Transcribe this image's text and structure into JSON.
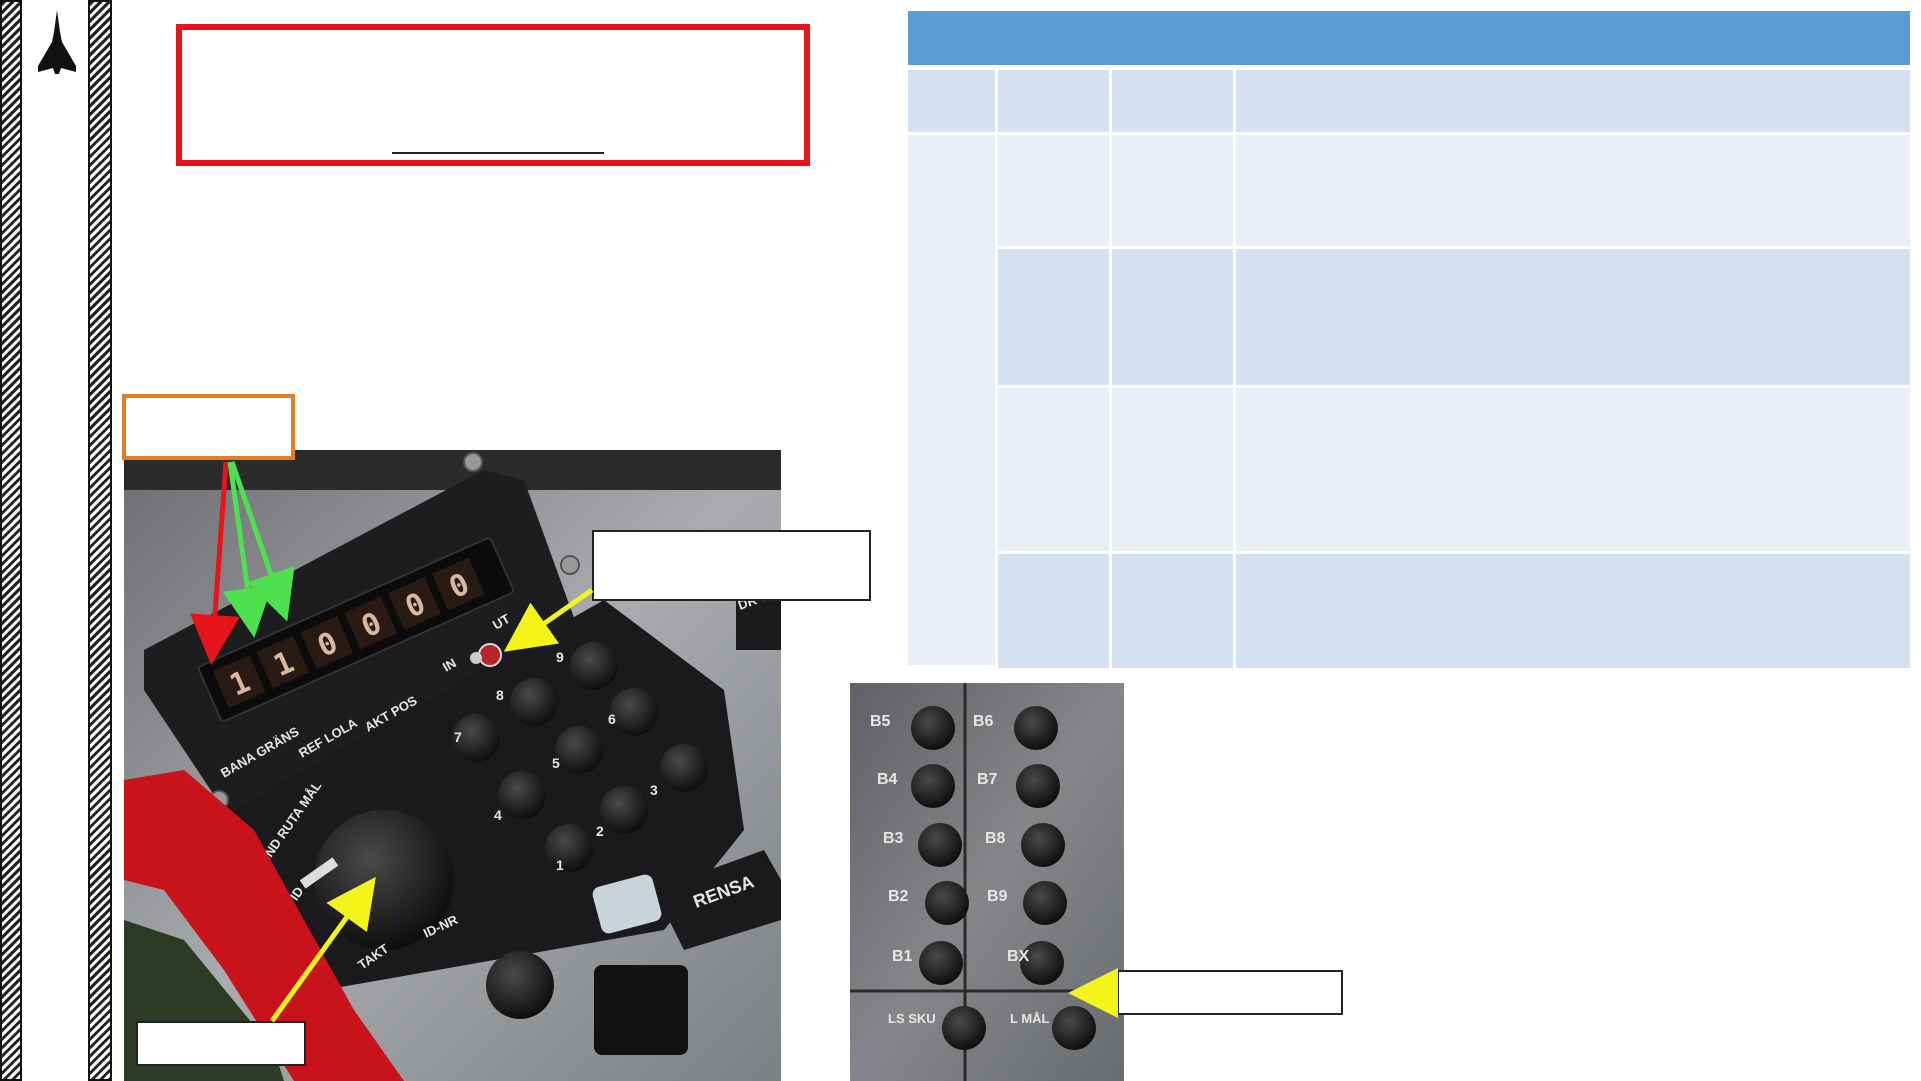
{
  "nav": {
    "jet_icon": "fighter-jet-icon"
  },
  "keypad": {
    "digit_readout": [
      "1",
      "1",
      "0",
      "0",
      "0",
      "0"
    ],
    "switch_labels": {
      "in": "IN",
      "ut": "UT"
    },
    "key_labels": [
      "1",
      "2",
      "3",
      "4",
      "5",
      "6",
      "7",
      "8",
      "9"
    ],
    "selector_labels": [
      "BANA GRÄNS",
      "REF LOLA",
      "AKT POS",
      "VIND RUTA MÅL",
      "TID",
      "TAKT",
      "ID-NR"
    ],
    "rensa_label": "RENSA",
    "edge_label": "DR TIL"
  },
  "button_panel": {
    "left_column": [
      "B5",
      "B4",
      "B3",
      "B2",
      "B1",
      "LS SKU"
    ],
    "right_column": [
      "B6",
      "B7",
      "B8",
      "B9",
      "BX",
      "L MÅL"
    ]
  },
  "colors": {
    "title_box_border": "#e8141c",
    "callout_orange": "#e27e2b",
    "table_header": "#5b9bd5",
    "table_cell_dark": "#d5e1f0",
    "table_cell_light": "#e9eef7",
    "arrow_red": "#e8141c",
    "arrow_green": "#4ee04e",
    "arrow_yellow": "#f4f41a"
  }
}
